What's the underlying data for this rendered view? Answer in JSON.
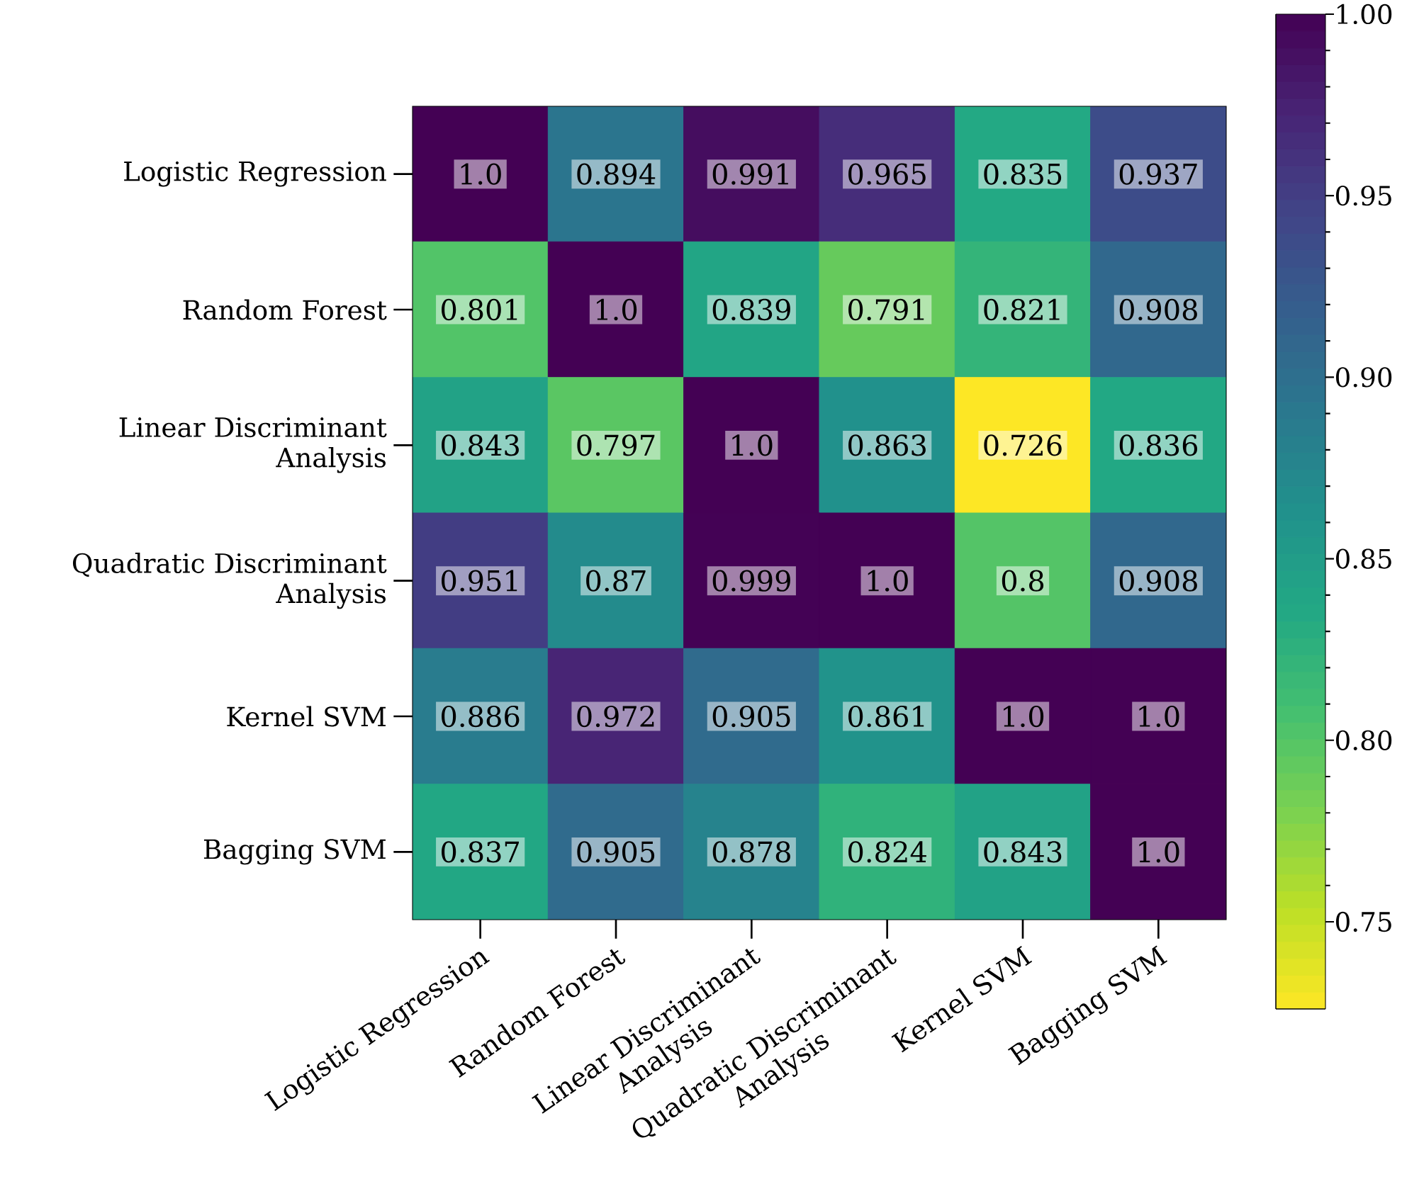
{
  "chart_data": {
    "type": "heatmap",
    "categories": [
      "Logistic Regression",
      "Random Forest",
      "Linear Discriminant Analysis",
      "Quadratic Discriminant Analysis",
      "Kernel SVM",
      "Bagging SVM"
    ],
    "y_categories": [
      "Logistic Regression",
      "Random Forest",
      "Linear Discriminant Analysis",
      "Quadratic Discriminant Analysis",
      "Kernel SVM",
      "Bagging SVM"
    ],
    "cells": [
      [
        1.0,
        0.894,
        0.991,
        0.965,
        0.835,
        0.937
      ],
      [
        0.801,
        1.0,
        0.839,
        0.791,
        0.821,
        0.908
      ],
      [
        0.843,
        0.797,
        1.0,
        0.863,
        0.726,
        0.836
      ],
      [
        0.951,
        0.87,
        0.999,
        1.0,
        0.8,
        0.908
      ],
      [
        0.886,
        0.972,
        0.905,
        0.861,
        1.0,
        1.0
      ],
      [
        0.837,
        0.905,
        0.878,
        0.824,
        0.843,
        1.0
      ]
    ],
    "cell_labels": [
      [
        "1.0",
        "0.894",
        "0.991",
        "0.965",
        "0.835",
        "0.937"
      ],
      [
        "0.801",
        "1.0",
        "0.839",
        "0.791",
        "0.821",
        "0.908"
      ],
      [
        "0.843",
        "0.797",
        "1.0",
        "0.863",
        "0.726",
        "0.836"
      ],
      [
        "0.951",
        "0.87",
        "0.999",
        "1.0",
        "0.8",
        "0.908"
      ],
      [
        "0.886",
        "0.972",
        "0.905",
        "0.861",
        "1.0",
        "1.0"
      ],
      [
        "0.837",
        "0.905",
        "0.878",
        "0.824",
        "0.843",
        "1.0"
      ]
    ],
    "clim": [
      0.726,
      1.0
    ],
    "cticks": [
      {
        "value": 0.75,
        "label": "0.75"
      },
      {
        "value": 0.8,
        "label": "0.80"
      },
      {
        "value": 0.85,
        "label": "0.85"
      },
      {
        "value": 0.9,
        "label": "0.90"
      },
      {
        "value": 0.95,
        "label": "0.95"
      },
      {
        "value": 1.0,
        "label": "1.00"
      }
    ]
  }
}
